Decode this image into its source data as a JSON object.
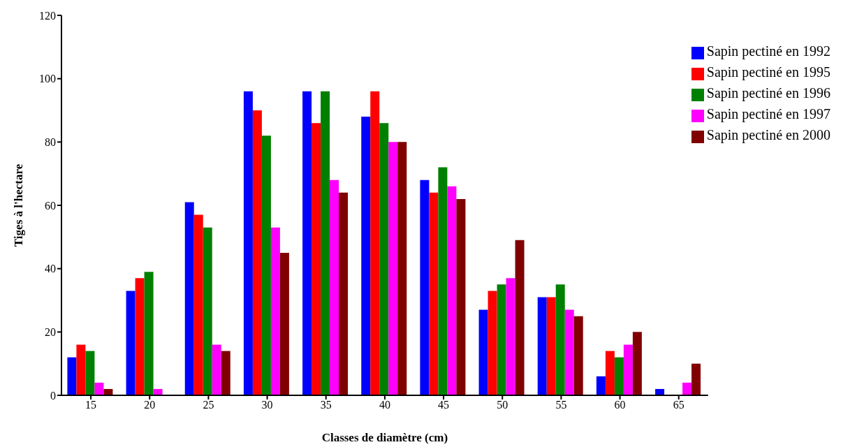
{
  "chart_data": {
    "type": "bar",
    "xlabel": "Classes de diamètre (cm)",
    "ylabel": "Tiges à l'hectare",
    "categories": [
      "15",
      "20",
      "25",
      "30",
      "35",
      "40",
      "45",
      "50",
      "55",
      "60",
      "65"
    ],
    "series": [
      {
        "name": "Sapin pectiné en 1992",
        "color": "#0000ff",
        "values": [
          12,
          33,
          61,
          96,
          96,
          88,
          68,
          27,
          31,
          6,
          2
        ]
      },
      {
        "name": "Sapin pectiné en 1995",
        "color": "#ff0000",
        "values": [
          16,
          37,
          57,
          90,
          86,
          96,
          64,
          33,
          31,
          14,
          0
        ]
      },
      {
        "name": "Sapin pectiné en 1996",
        "color": "#008000",
        "values": [
          14,
          39,
          53,
          82,
          96,
          86,
          72,
          35,
          35,
          12,
          0
        ]
      },
      {
        "name": "Sapin pectiné en 1997",
        "color": "#ff00ff",
        "values": [
          4,
          2,
          16,
          53,
          68,
          80,
          66,
          37,
          27,
          16,
          4
        ]
      },
      {
        "name": "Sapin pectiné en 2000",
        "color": "#800000",
        "values": [
          2,
          0,
          14,
          45,
          64,
          80,
          62,
          49,
          25,
          20,
          10
        ]
      }
    ],
    "ylim": [
      0,
      120
    ],
    "yticks": [
      0,
      20,
      40,
      60,
      80,
      100,
      120
    ],
    "grid": false,
    "legend": "top right"
  }
}
